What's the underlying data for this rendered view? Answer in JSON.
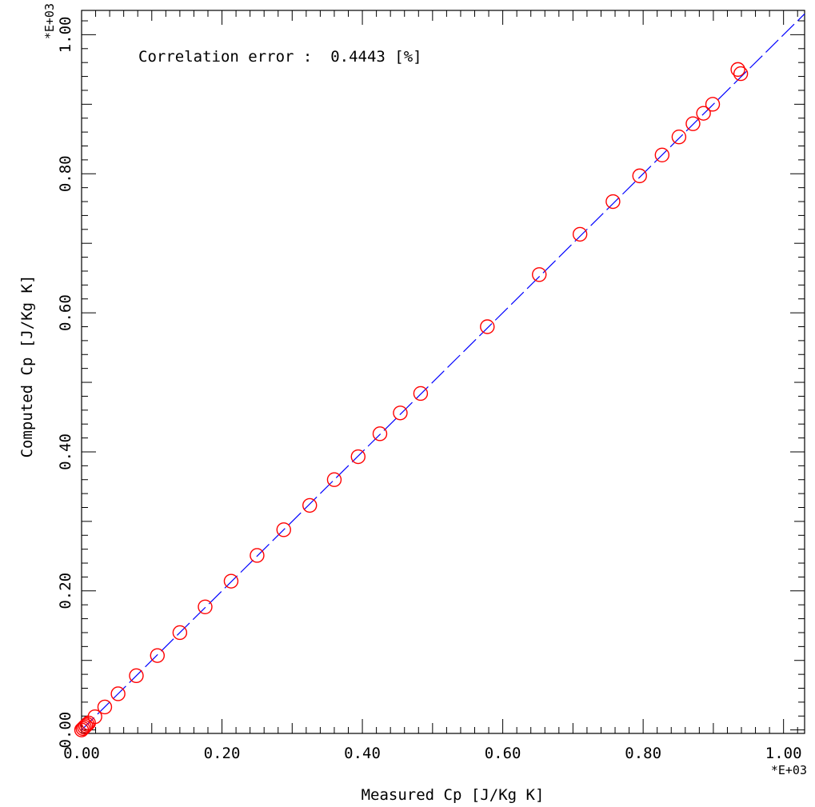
{
  "chart_data": {
    "type": "scatter",
    "title": "",
    "xlabel": "Measured Cp [J/Kg K]",
    "ylabel": "Computed Cp [J/Kg K]",
    "xlim": [
      0.0,
      1.03
    ],
    "ylim": [
      -0.005,
      1.035
    ],
    "x_ticks": [
      "0.00",
      "0.20",
      "0.40",
      "0.60",
      "0.80",
      "1.00"
    ],
    "y_ticks": [
      "0.00",
      "0.20",
      "0.40",
      "0.60",
      "0.80",
      "1.00"
    ],
    "x_multiplier": "*E+03",
    "y_multiplier": "*E+03",
    "annotation": "Correlation error :  0.4443 [%]",
    "grid": false,
    "reference_line": {
      "from": [
        0.0,
        0.0
      ],
      "to": [
        1.03,
        1.03
      ],
      "style": "dashed",
      "color": "#0000ff"
    },
    "marker_color": "#ff0000",
    "series": [
      {
        "x": [
          0.0,
          0.002,
          0.004,
          0.006,
          0.008,
          0.01,
          0.019,
          0.033,
          0.052,
          0.078,
          0.108,
          0.14,
          0.176,
          0.213,
          0.25,
          0.288,
          0.325,
          0.36,
          0.394,
          0.425,
          0.454,
          0.483,
          0.578,
          0.652,
          0.71,
          0.757,
          0.795,
          0.827,
          0.851,
          0.871,
          0.886,
          0.899,
          0.935,
          0.939
        ],
        "y": [
          0.0,
          0.002,
          0.004,
          0.006,
          0.008,
          0.01,
          0.019,
          0.033,
          0.052,
          0.078,
          0.107,
          0.14,
          0.177,
          0.214,
          0.251,
          0.288,
          0.323,
          0.36,
          0.393,
          0.426,
          0.456,
          0.484,
          0.58,
          0.655,
          0.713,
          0.76,
          0.797,
          0.827,
          0.853,
          0.872,
          0.887,
          0.9,
          0.95,
          0.944
        ]
      }
    ]
  }
}
